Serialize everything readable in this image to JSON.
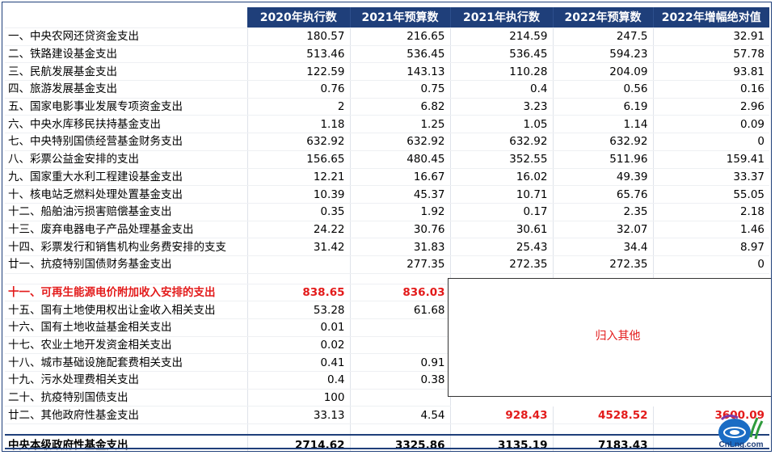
{
  "columns": [
    "",
    "2020年执行数",
    "2021年预算数",
    "2021年执行数",
    "2022年预算数",
    "2022年增幅绝对值"
  ],
  "rows": [
    {
      "label": "一、中央农网还贷资金支出",
      "v": [
        "180.57",
        "216.65",
        "214.59",
        "247.5",
        "32.91"
      ]
    },
    {
      "label": "二、铁路建设基金支出",
      "v": [
        "513.46",
        "536.45",
        "536.45",
        "594.23",
        "57.78"
      ]
    },
    {
      "label": "三、民航发展基金支出",
      "v": [
        "122.59",
        "143.13",
        "110.28",
        "204.09",
        "93.81"
      ]
    },
    {
      "label": "四、旅游发展基金支出",
      "v": [
        "0.76",
        "0.75",
        "0.4",
        "0.56",
        "0.16"
      ]
    },
    {
      "label": "五、国家电影事业发展专项资金支出",
      "v": [
        "2",
        "6.82",
        "3.23",
        "6.19",
        "2.96"
      ]
    },
    {
      "label": "六、中央水库移民扶持基金支出",
      "v": [
        "1.18",
        "1.25",
        "1.05",
        "1.14",
        "0.09"
      ]
    },
    {
      "label": "七、中央特别国债经营基金财务支出",
      "v": [
        "632.92",
        "632.92",
        "632.92",
        "632.92",
        "0"
      ]
    },
    {
      "label": "八、彩票公益金安排的支出",
      "v": [
        "156.65",
        "480.45",
        "352.55",
        "511.96",
        "159.41"
      ]
    },
    {
      "label": "九、国家重大水利工程建设基金支出",
      "v": [
        "12.21",
        "16.67",
        "16.02",
        "49.39",
        "33.37"
      ]
    },
    {
      "label": "十、核电站乏燃料处理处置基金支出",
      "v": [
        "10.39",
        "45.37",
        "10.71",
        "65.76",
        "55.05"
      ]
    },
    {
      "label": "十二、船舶油污损害赔偿基金支出",
      "v": [
        "0.35",
        "1.92",
        "0.17",
        "2.35",
        "2.18"
      ]
    },
    {
      "label": "十三、废弃电器电子产品处理基金支出",
      "v": [
        "24.22",
        "30.76",
        "30.61",
        "32.07",
        "1.46"
      ]
    },
    {
      "label": "十四、彩票发行和销售机构业务费安排的支⽀",
      "v": [
        "31.42",
        "31.83",
        "25.43",
        "34.4",
        "8.97"
      ]
    },
    {
      "label": "廿一、抗疫特别国债财务基金支出",
      "v": [
        "",
        "277.35",
        "272.35",
        "272.35",
        "0"
      ]
    }
  ],
  "other_rows": [
    {
      "label": "十一、可再生能源电价附加收入安排的支出",
      "v": [
        "838.65",
        "836.03"
      ]
    },
    {
      "label": "十五、国有土地使用权出让金收入相关支出",
      "v": [
        "53.28",
        "61.68"
      ]
    },
    {
      "label": "十六、国有土地收益基金相关支出",
      "v": [
        "0.01",
        ""
      ]
    },
    {
      "label": "十七、农业土地开发资金相关支出",
      "v": [
        "0.02",
        ""
      ]
    },
    {
      "label": "十八、城市基础设施配套费相关支出",
      "v": [
        "0.41",
        "0.91"
      ]
    },
    {
      "label": "十九、污水处理费相关支出",
      "v": [
        "0.4",
        "0.38"
      ]
    },
    {
      "label": "二十、抗疫特别国债支出",
      "v": [
        "100",
        ""
      ]
    }
  ],
  "other_row_final": {
    "label": "廿二、其他政府性基金支出",
    "v": [
      "33.13",
      "4.54",
      "928.43",
      "4528.52",
      "3600.09"
    ]
  },
  "merge_note": "归入其他",
  "total": {
    "label": "中央本级政府性基金支出",
    "v": [
      "2714.62",
      "3325.86",
      "3135.19",
      "7183.43",
      ""
    ]
  },
  "logo_text": "CnLng.com",
  "colors": {
    "header_bg": "#1f3f7a",
    "highlight": "#e31b1b"
  }
}
